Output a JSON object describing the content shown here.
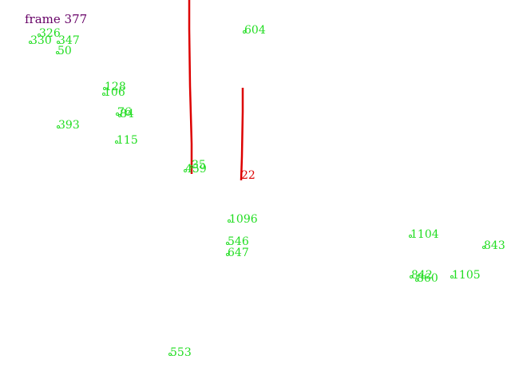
{
  "frame_label": "frame 377",
  "colors": {
    "background": "#ffffff",
    "frame_text": "#660066",
    "point_green": "#22dd22",
    "track_red": "#dd0000"
  },
  "points": [
    {
      "id": "326"
    },
    {
      "id": "330"
    },
    {
      "id": "347"
    },
    {
      "id": "50"
    },
    {
      "id": "604"
    },
    {
      "id": "128"
    },
    {
      "id": "106"
    },
    {
      "id": "76"
    },
    {
      "id": "84"
    },
    {
      "id": "393"
    },
    {
      "id": "115"
    },
    {
      "id": "35"
    },
    {
      "id": "459"
    },
    {
      "id": "1096"
    },
    {
      "id": "546"
    },
    {
      "id": "647"
    },
    {
      "id": "1104"
    },
    {
      "id": "843"
    },
    {
      "id": "842"
    },
    {
      "id": "860"
    },
    {
      "id": "1105"
    },
    {
      "id": "553"
    }
  ],
  "track_labels": [
    {
      "id": "22"
    }
  ]
}
